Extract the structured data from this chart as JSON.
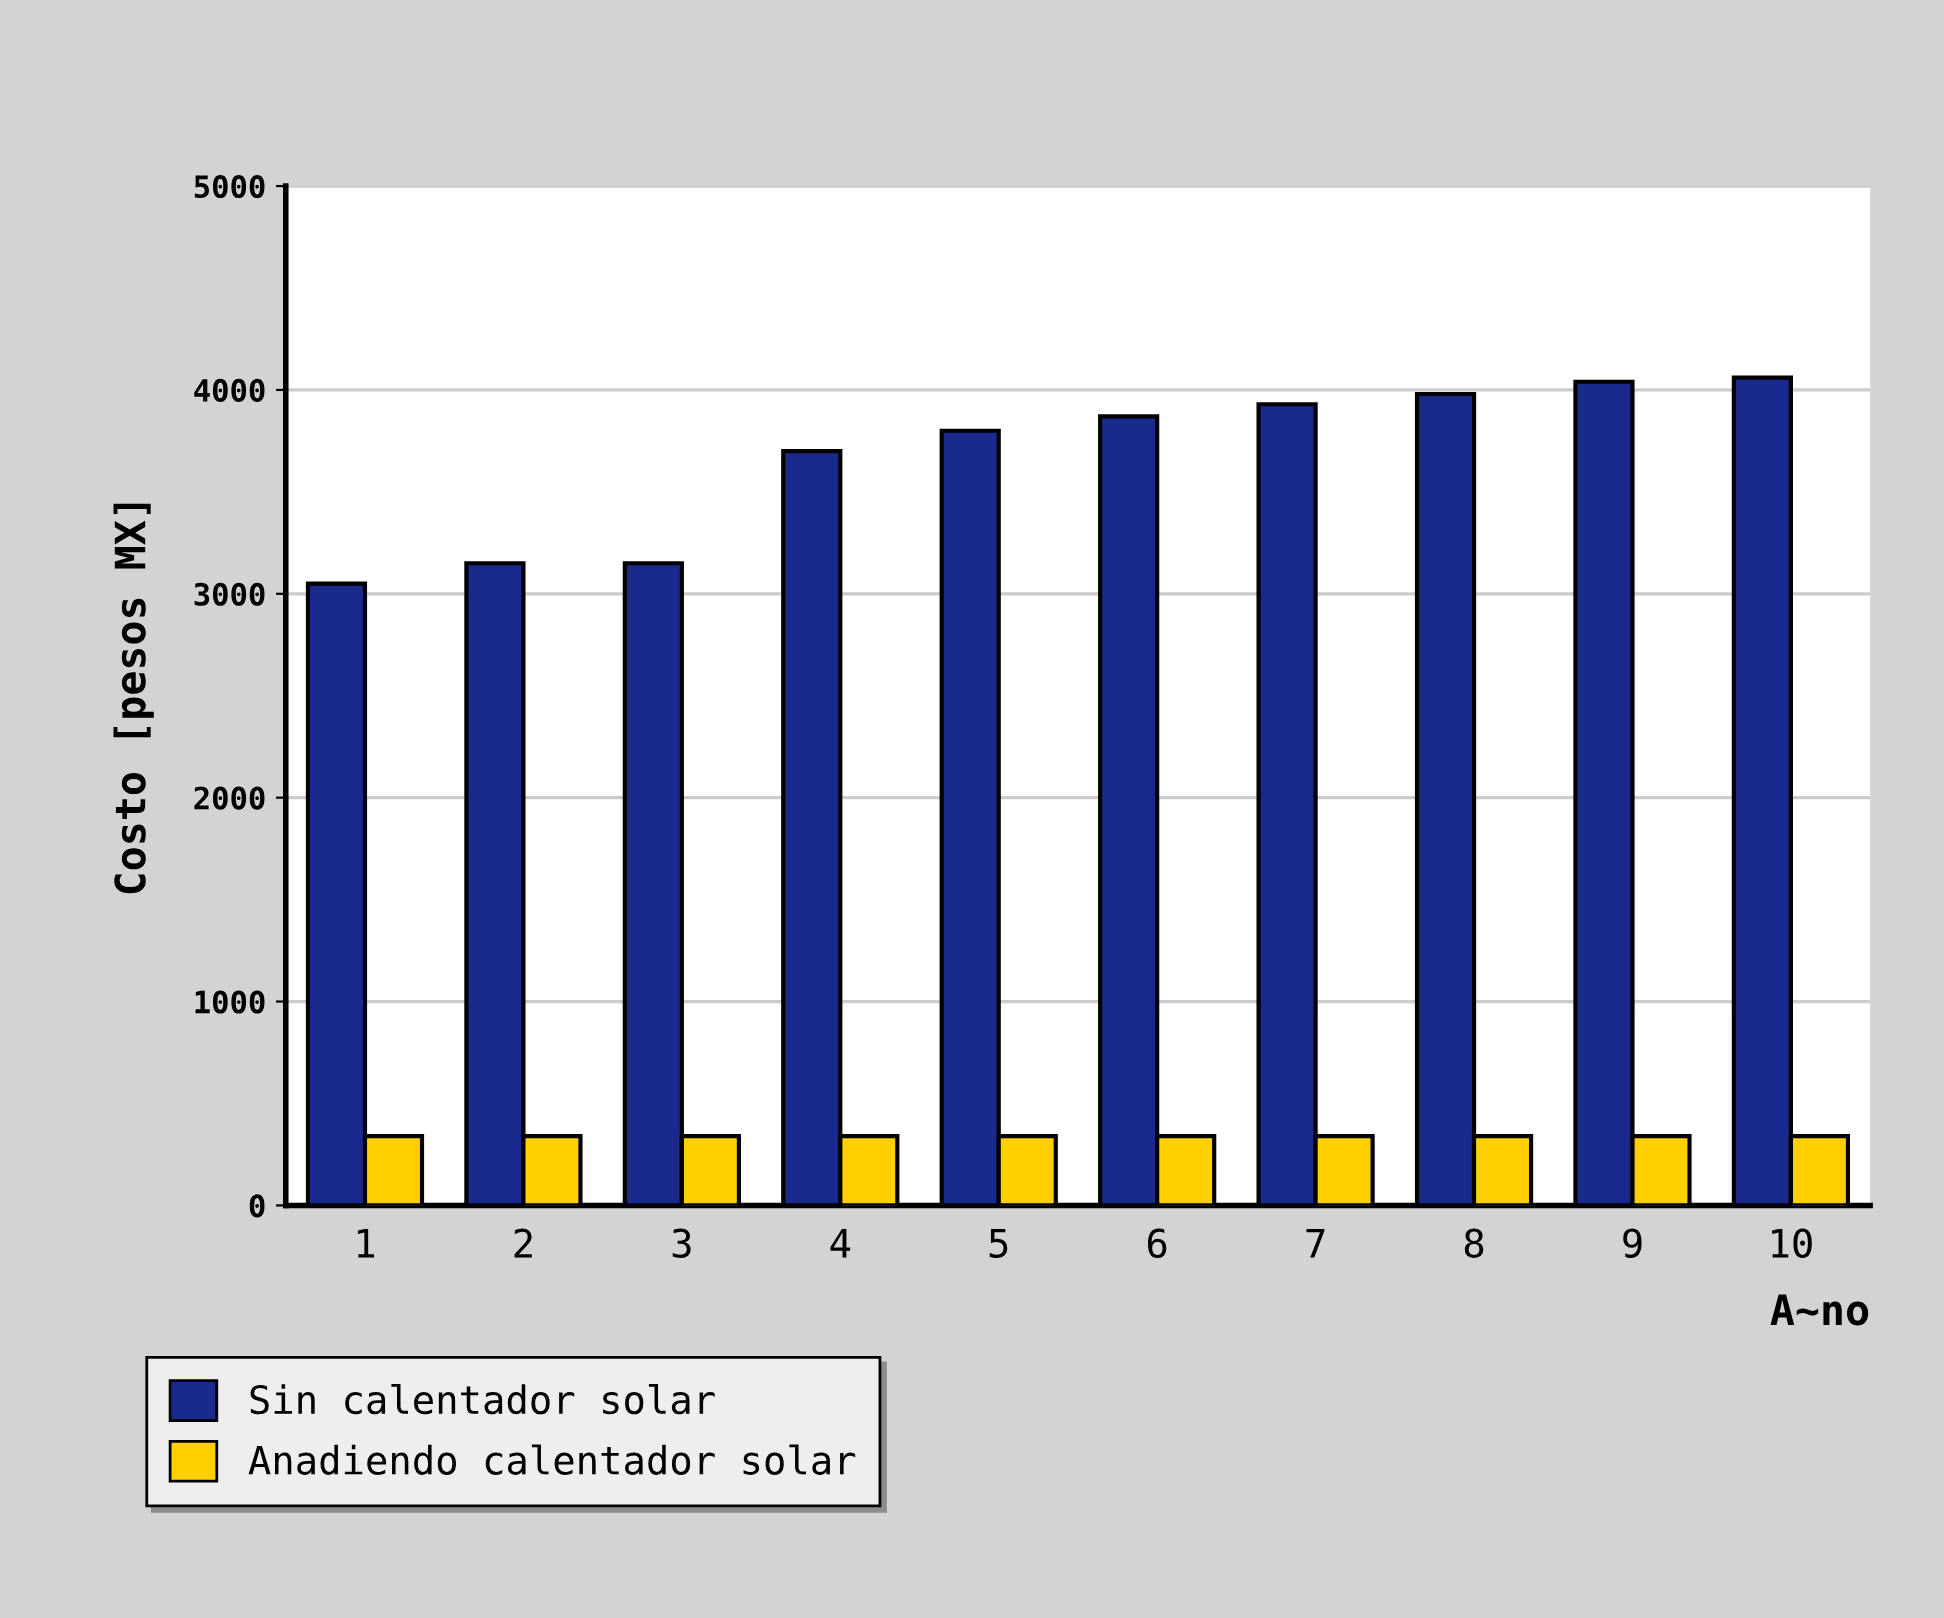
{
  "chart_data": {
    "type": "bar",
    "xlabel": "A~no",
    "ylabel": "Costo [pesos MX]",
    "categories": [
      "1",
      "2",
      "3",
      "4",
      "5",
      "6",
      "7",
      "8",
      "9",
      "10"
    ],
    "series": [
      {
        "name": "Sin calentador solar",
        "color": "#1a2a8c",
        "values": [
          3050,
          3150,
          3150,
          3700,
          3800,
          3870,
          3930,
          3980,
          4040,
          4060
        ]
      },
      {
        "name": "Anadiendo calentador solar",
        "color": "#ffd000",
        "values": [
          340,
          340,
          340,
          340,
          340,
          340,
          340,
          340,
          340,
          340
        ]
      }
    ],
    "ylim": [
      0,
      5000
    ],
    "yticks": [
      0,
      1000,
      2000,
      3000,
      4000,
      5000
    ],
    "grid": "y",
    "legend": "bottom left"
  }
}
